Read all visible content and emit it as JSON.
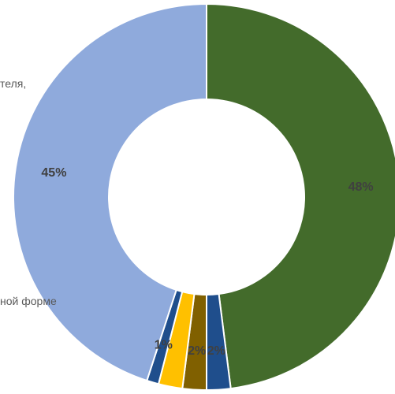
{
  "chart_data": {
    "type": "pie",
    "donut": true,
    "slices": [
      {
        "value": 48,
        "label": "48%",
        "color": "#436b2b"
      },
      {
        "value": 2,
        "label": "2%",
        "color": "#1f4e8c"
      },
      {
        "value": 2,
        "label": "2%",
        "color": "#806000"
      },
      {
        "value": 2,
        "label": "",
        "color": "#ffc000"
      },
      {
        "value": 1,
        "label": "1%",
        "color": "#1f4e8c"
      },
      {
        "value": 45,
        "label": "45%",
        "color": "#8faadc"
      }
    ],
    "cut_labels": [
      {
        "text": "теля,"
      },
      {
        "text": "ной форме"
      }
    ]
  }
}
